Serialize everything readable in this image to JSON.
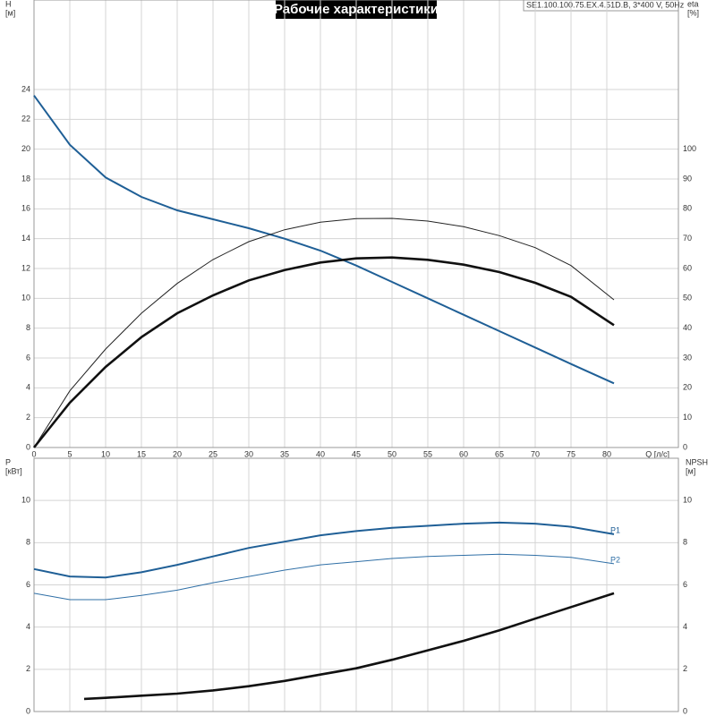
{
  "chart_data": [
    {
      "type": "line",
      "title": "Рабочие характеристики",
      "subtitle": "SE1.100.100.75.EX.4.51D.B, 3*400 V, 50Hz",
      "ylabel": [
        "H",
        "[м]"
      ],
      "y2label": [
        "eta",
        "[%]"
      ],
      "xlabel": "Q [л/с]",
      "xlim": [
        0,
        90
      ],
      "xticks": [
        0,
        5,
        10,
        15,
        20,
        25,
        30,
        35,
        40,
        45,
        50,
        55,
        60,
        65,
        70,
        75,
        80
      ],
      "ylim": [
        0,
        30
      ],
      "yticks": [
        0,
        2,
        4,
        6,
        8,
        10,
        12,
        14,
        16,
        18,
        20,
        22,
        24
      ],
      "y2lim": [
        0,
        150
      ],
      "y2ticks": [
        0,
        10,
        20,
        30,
        40,
        50,
        60,
        70,
        80,
        90,
        100
      ],
      "grid": true,
      "series": [
        {
          "color": "#1f5f96",
          "weight": "bold",
          "axis": "y",
          "x": [
            0,
            5,
            10,
            15,
            20,
            25,
            30,
            35,
            40,
            45,
            50,
            55,
            60,
            65,
            70,
            75,
            81
          ],
          "values": [
            23.6,
            20.3,
            18.1,
            16.8,
            15.9,
            15.3,
            14.7,
            14.0,
            13.2,
            12.2,
            11.1,
            10.0,
            8.9,
            7.8,
            6.7,
            5.6,
            4.3
          ]
        },
        {
          "color": "#222222",
          "weight": "thin",
          "axis": "y2",
          "x": [
            0,
            5,
            10,
            15,
            20,
            25,
            30,
            35,
            40,
            45,
            50,
            55,
            60,
            65,
            70,
            75,
            81
          ],
          "values": [
            0,
            19,
            33,
            45,
            55,
            63,
            69,
            73,
            75.5,
            76.7,
            76.8,
            75.9,
            74,
            71,
            67,
            61,
            49.5
          ]
        },
        {
          "color": "#111111",
          "weight": "heavy",
          "axis": "y2",
          "x": [
            0,
            5,
            10,
            15,
            20,
            25,
            30,
            35,
            40,
            45,
            50,
            55,
            60,
            65,
            70,
            75,
            81
          ],
          "values": [
            0,
            15,
            27,
            37,
            45,
            51,
            56,
            59.5,
            62,
            63.4,
            63.7,
            62.9,
            61.3,
            58.8,
            55.2,
            50.5,
            41
          ]
        }
      ]
    },
    {
      "type": "line",
      "ylabel": [
        "P",
        "[кВт]"
      ],
      "y2label": [
        "NPSH",
        "[м]"
      ],
      "ylim": [
        0,
        12
      ],
      "yticks": [
        0,
        2,
        4,
        6,
        8,
        10
      ],
      "y2lim": [
        0,
        12
      ],
      "y2ticks": [
        0,
        2,
        4,
        6,
        8,
        10
      ],
      "grid": true,
      "series": [
        {
          "name": "P1",
          "color": "#1f5f96",
          "weight": "bold",
          "axis": "y",
          "x": [
            0,
            5,
            10,
            15,
            20,
            25,
            30,
            35,
            40,
            45,
            50,
            55,
            60,
            65,
            70,
            75,
            81
          ],
          "values": [
            6.75,
            6.4,
            6.35,
            6.6,
            6.95,
            7.35,
            7.75,
            8.05,
            8.35,
            8.55,
            8.7,
            8.8,
            8.9,
            8.95,
            8.9,
            8.75,
            8.4
          ]
        },
        {
          "name": "P2",
          "color": "#2f6fa6",
          "weight": "thin",
          "axis": "y",
          "x": [
            0,
            5,
            10,
            15,
            20,
            25,
            30,
            35,
            40,
            45,
            50,
            55,
            60,
            65,
            70,
            75,
            81
          ],
          "values": [
            5.6,
            5.3,
            5.3,
            5.5,
            5.75,
            6.1,
            6.4,
            6.7,
            6.95,
            7.1,
            7.25,
            7.35,
            7.4,
            7.45,
            7.4,
            7.3,
            7.0
          ]
        },
        {
          "color": "#111111",
          "weight": "heavy",
          "axis": "y2",
          "x": [
            7,
            10,
            15,
            20,
            25,
            30,
            35,
            40,
            45,
            50,
            55,
            60,
            65,
            70,
            75,
            81
          ],
          "values": [
            0.6,
            0.65,
            0.75,
            0.85,
            1.0,
            1.2,
            1.45,
            1.75,
            2.05,
            2.45,
            2.9,
            3.35,
            3.85,
            4.4,
            4.95,
            5.6
          ]
        }
      ]
    }
  ]
}
